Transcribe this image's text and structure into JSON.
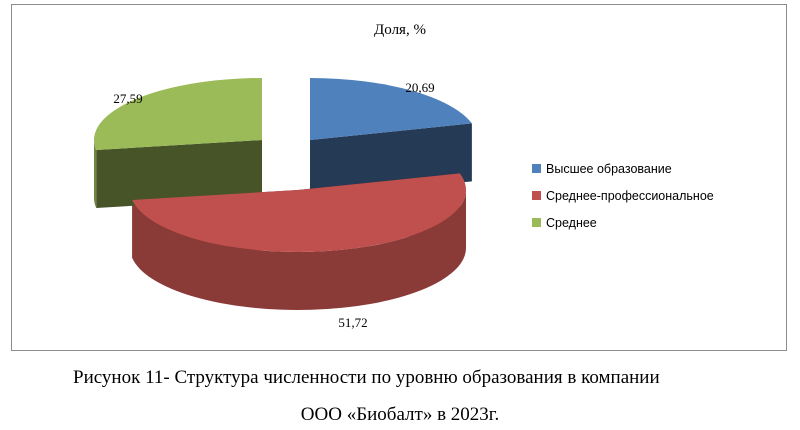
{
  "chart_data": {
    "type": "pie",
    "title": "Доля, %",
    "categories": [
      "Высшее образование",
      "Среднее-профессиональное",
      "Среднее"
    ],
    "values": [
      20.69,
      51.72,
      27.59
    ],
    "value_labels": [
      "20,69",
      "51,72",
      "27,59"
    ],
    "colors": [
      "#4F81BD",
      "#C0504D",
      "#9BBB59"
    ],
    "exploded": "Высшее образование, Среднее",
    "legend_position": "right"
  },
  "caption": {
    "line1": "Рисунок  11- Структура численности по уровню образования в компании",
    "line2": "ООО «Биобалт» в 2023г."
  }
}
